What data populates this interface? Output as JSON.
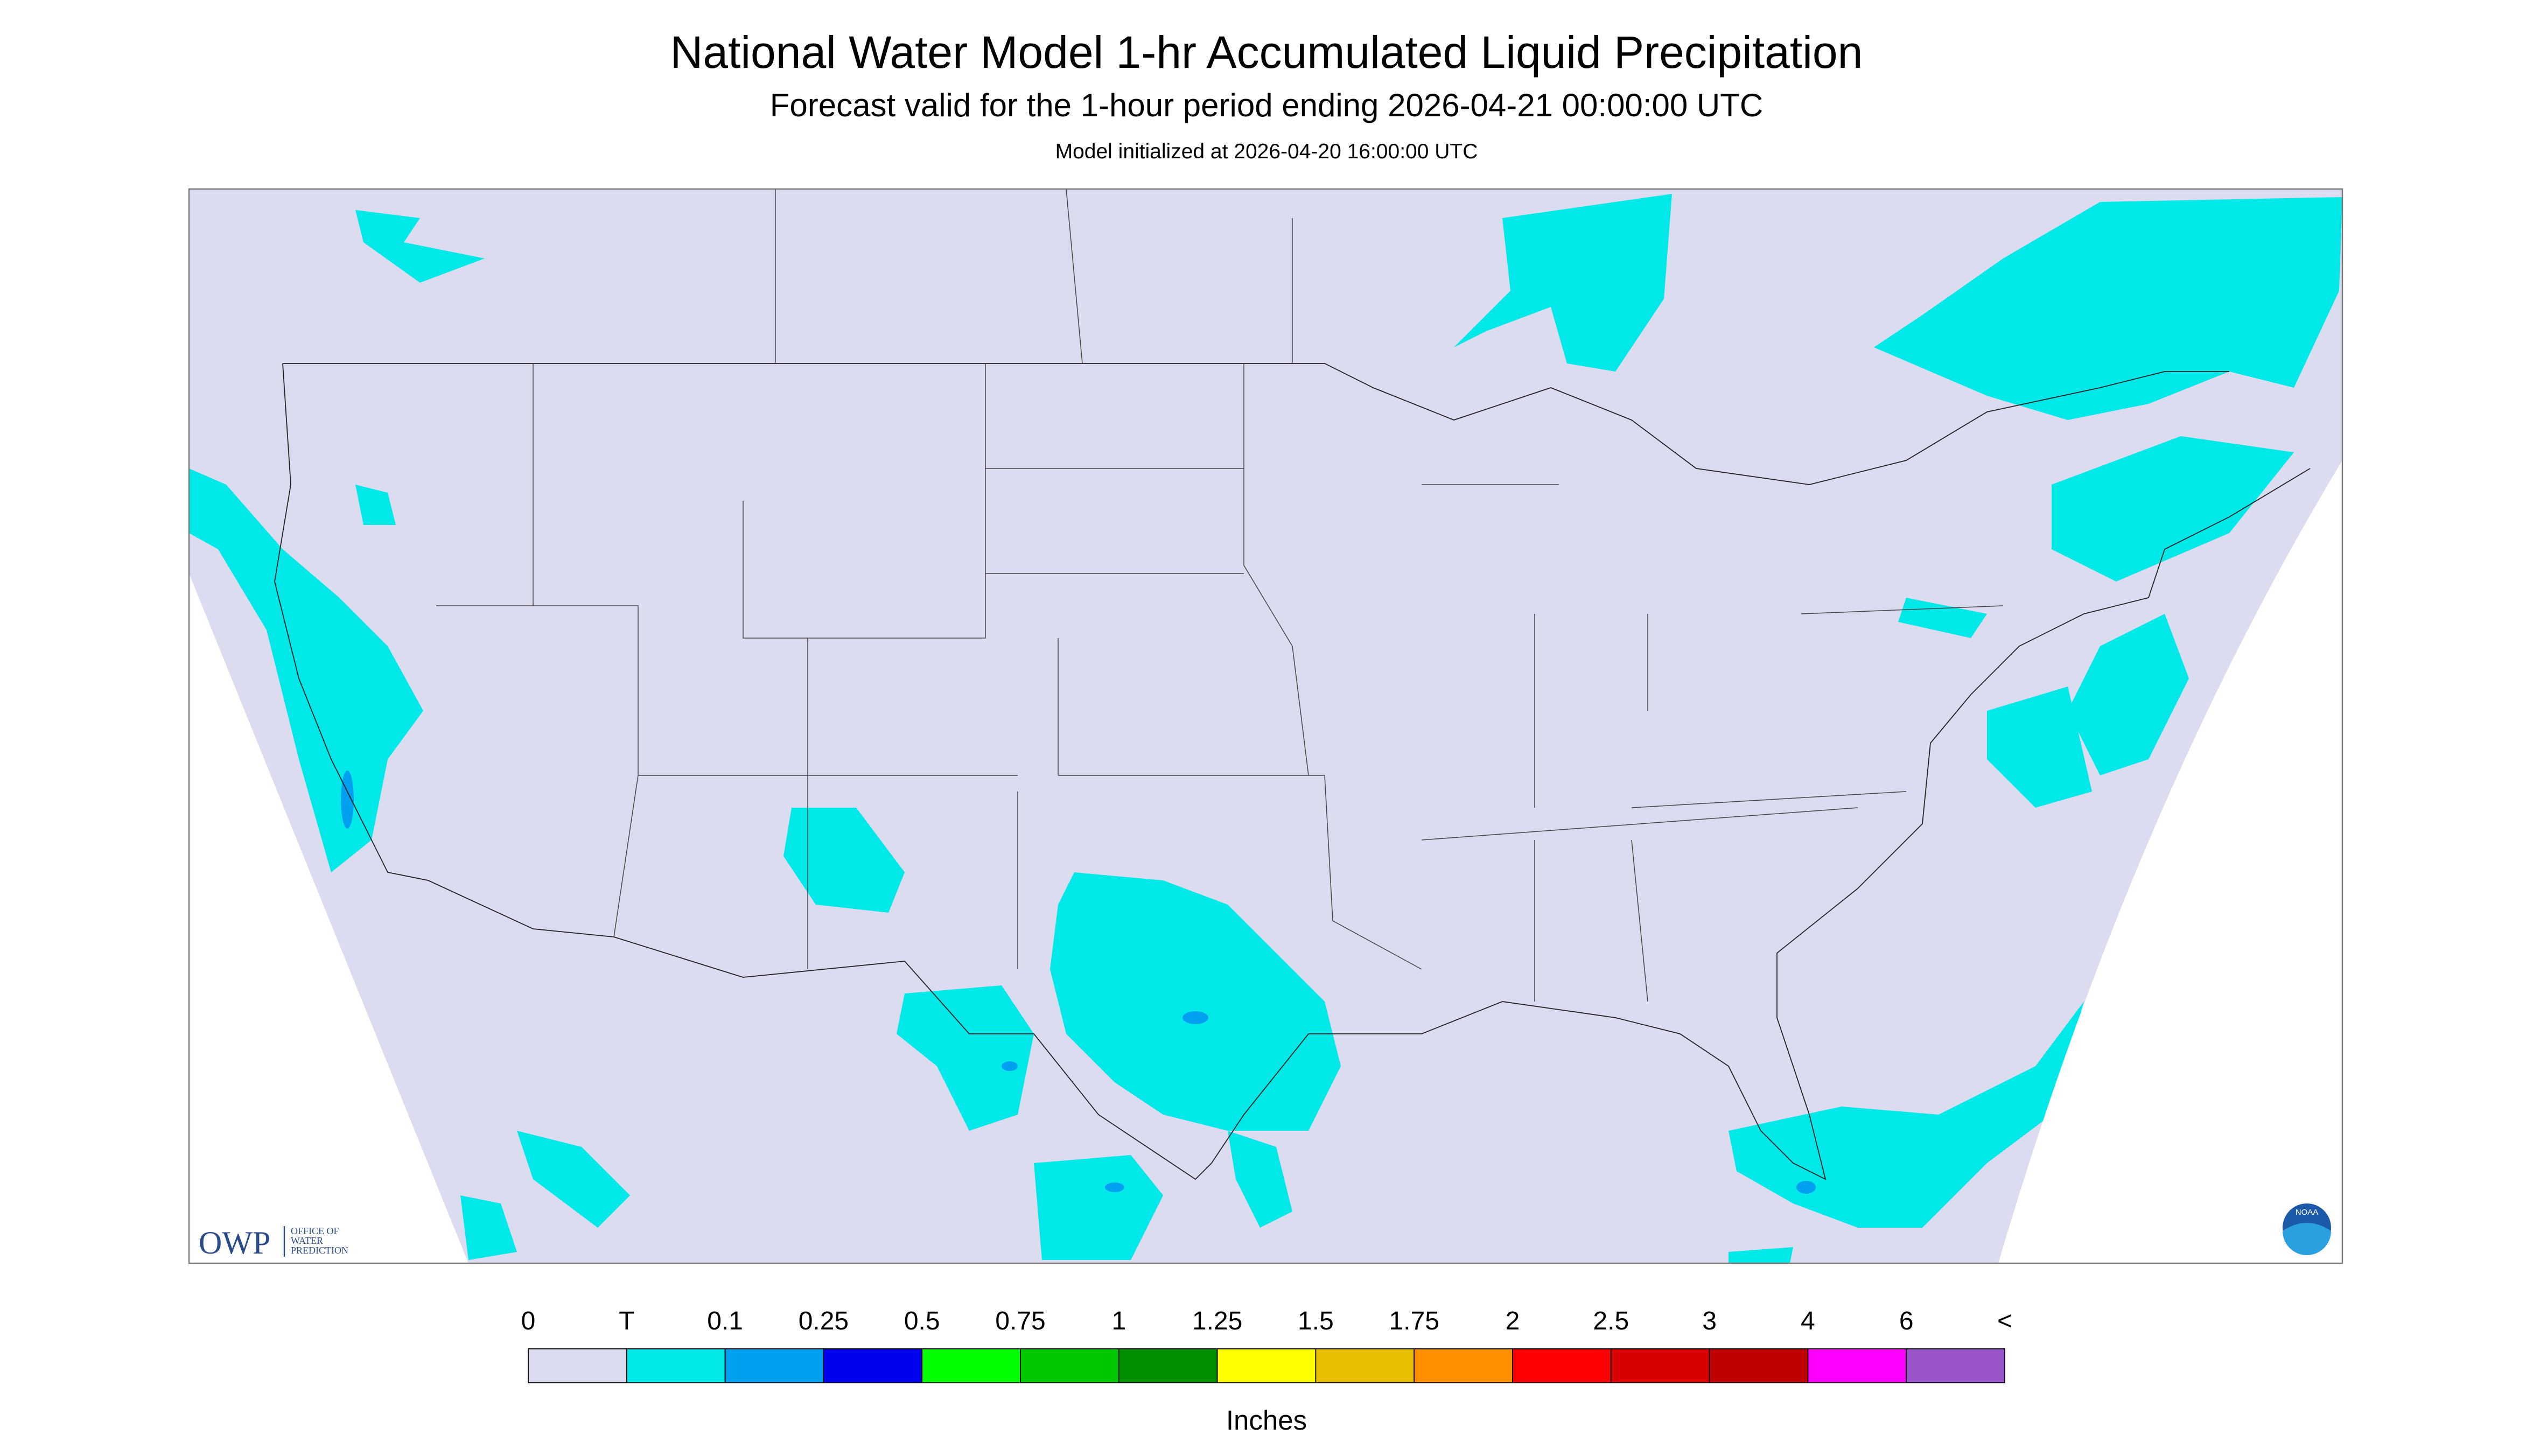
{
  "header": {
    "title": "National Water Model 1-hr Accumulated Liquid Precipitation",
    "subtitle": "Forecast valid for the 1-hour period ending 2026-04-21 00:00:00 UTC",
    "init": "Model initialized at 2026-04-20 16:00:00 UTC"
  },
  "logo": {
    "abbr": "OWP",
    "line1": "OFFICE OF",
    "line2": "WATER",
    "line3": "PREDICTION",
    "noaa": "NOAA"
  },
  "colorbar": {
    "labels": [
      "0",
      "T",
      "0.1",
      "0.25",
      "0.5",
      "0.75",
      "1",
      "1.25",
      "1.5",
      "1.75",
      "2",
      "2.5",
      "3",
      "4",
      "6",
      "<"
    ],
    "colors": [
      "#dcdcf0",
      "#00e8e8",
      "#00a0f0",
      "#0000f0",
      "#00ff00",
      "#00c800",
      "#009000",
      "#ffff00",
      "#e8c000",
      "#ff9000",
      "#ff0000",
      "#d80000",
      "#c00000",
      "#ff00ff",
      "#9955c9"
    ],
    "unit": "Inches"
  }
}
